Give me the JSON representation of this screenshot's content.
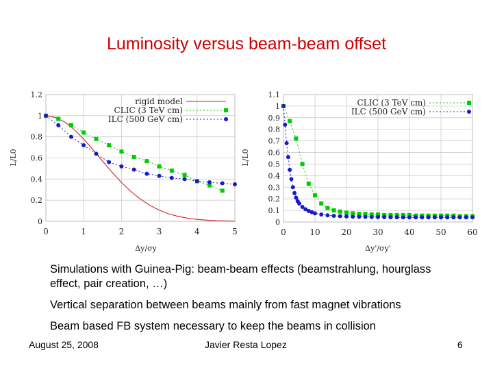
{
  "slide": {
    "title": "Luminosity versus beam-beam offset",
    "bullets": [
      "Simulations with Guinea-Pig: beam-beam effects (beamstrahlung, hourglass effect, pair creation, …)",
      "Vertical separation between beams mainly from fast magnet vibrations",
      "Beam based FB system necessary to keep the beams in collision"
    ],
    "footer": {
      "date": "August 25, 2008",
      "author": "Javier Resta Lopez",
      "page": "6"
    }
  },
  "colors": {
    "title": "#cc0000",
    "rigid": "#cc2222",
    "clic": "#00cc00",
    "ilc": "#1a1acc",
    "grid": "#cccccc"
  },
  "chart_data": [
    {
      "type": "line",
      "ylabel": "L/L0",
      "xlabel": "Δy/σy",
      "xlim": [
        0,
        5
      ],
      "ylim": [
        0,
        1.2
      ],
      "xticks": [
        0,
        1,
        2,
        3,
        4,
        5
      ],
      "yticks": [
        0,
        0.2,
        0.4,
        0.6,
        0.8,
        1,
        1.2
      ],
      "grid": true,
      "legend_position": "top-right",
      "series": [
        {
          "name": "rigid model",
          "style": "solid",
          "color": "#cc2222",
          "x": [
            0,
            0.25,
            0.5,
            0.75,
            1,
            1.25,
            1.5,
            1.75,
            2,
            2.25,
            2.5,
            2.75,
            3,
            3.25,
            3.5,
            3.75,
            4,
            4.25,
            4.5,
            4.75,
            5
          ],
          "y": [
            1.0,
            0.984,
            0.939,
            0.869,
            0.779,
            0.677,
            0.57,
            0.465,
            0.368,
            0.282,
            0.21,
            0.151,
            0.105,
            0.071,
            0.047,
            0.03,
            0.018,
            0.011,
            0.006,
            0.004,
            0.002
          ]
        },
        {
          "name": "CLIC (3 TeV cm)",
          "style": "dotted-square",
          "color": "#00cc00",
          "x": [
            0,
            0.33,
            0.67,
            1,
            1.33,
            1.67,
            2,
            2.33,
            2.67,
            3,
            3.33,
            3.67,
            4,
            4.33,
            4.67
          ],
          "y": [
            1.0,
            0.97,
            0.91,
            0.84,
            0.78,
            0.72,
            0.66,
            0.61,
            0.57,
            0.52,
            0.48,
            0.44,
            0.38,
            0.34,
            0.29
          ]
        },
        {
          "name": "ILC (500 GeV cm)",
          "style": "dotted-circle",
          "color": "#1a1acc",
          "x": [
            0,
            0.33,
            0.67,
            1,
            1.33,
            1.67,
            2,
            2.33,
            2.67,
            3,
            3.33,
            3.67,
            4,
            4.33,
            4.67,
            5
          ],
          "y": [
            1.0,
            0.91,
            0.8,
            0.72,
            0.64,
            0.56,
            0.52,
            0.49,
            0.45,
            0.43,
            0.41,
            0.4,
            0.38,
            0.37,
            0.36,
            0.35
          ]
        }
      ]
    },
    {
      "type": "line",
      "ylabel": "L/L0",
      "xlabel": "Δy'/σy'",
      "xlim": [
        0,
        60
      ],
      "ylim": [
        0,
        1.1
      ],
      "xticks": [
        0,
        10,
        20,
        30,
        40,
        50,
        60
      ],
      "yticks": [
        0,
        0.1,
        0.2,
        0.3,
        0.4,
        0.5,
        0.6,
        0.7,
        0.8,
        0.9,
        1,
        1.1
      ],
      "grid": true,
      "legend_position": "top-right",
      "series": [
        {
          "name": "CLIC (3 TeV cm)",
          "style": "dotted-square",
          "color": "#00cc00",
          "x": [
            0,
            2,
            4,
            6,
            8,
            10,
            12,
            14,
            16,
            18,
            20,
            22,
            24,
            26,
            28,
            30,
            32,
            34,
            36,
            38,
            40,
            42,
            44,
            46,
            48,
            50,
            52,
            54,
            56,
            58,
            60
          ],
          "y": [
            1.0,
            0.87,
            0.72,
            0.5,
            0.33,
            0.23,
            0.16,
            0.12,
            0.1,
            0.09,
            0.08,
            0.075,
            0.07,
            0.07,
            0.065,
            0.065,
            0.06,
            0.06,
            0.06,
            0.06,
            0.06,
            0.055,
            0.055,
            0.055,
            0.055,
            0.055,
            0.055,
            0.055,
            0.05,
            0.05,
            0.05
          ]
        },
        {
          "name": "ILC (500 GeV cm)",
          "style": "dotted-circle",
          "color": "#1a1acc",
          "x": [
            0,
            0.5,
            1,
            1.5,
            2,
            2.5,
            3,
            3.5,
            4,
            4.5,
            5,
            6,
            7,
            8,
            9,
            10,
            12,
            14,
            16,
            18,
            20,
            22,
            24,
            26,
            28,
            30,
            32,
            34,
            36,
            38,
            40,
            42,
            44,
            46,
            48,
            50,
            52,
            54,
            56,
            58,
            60
          ],
          "y": [
            1.0,
            0.84,
            0.68,
            0.56,
            0.45,
            0.37,
            0.3,
            0.25,
            0.21,
            0.18,
            0.16,
            0.13,
            0.11,
            0.095,
            0.085,
            0.075,
            0.065,
            0.058,
            0.053,
            0.05,
            0.048,
            0.046,
            0.045,
            0.044,
            0.043,
            0.042,
            0.042,
            0.041,
            0.041,
            0.04,
            0.04,
            0.04,
            0.04,
            0.04,
            0.04,
            0.04,
            0.04,
            0.04,
            0.04,
            0.04,
            0.04
          ]
        }
      ]
    }
  ]
}
